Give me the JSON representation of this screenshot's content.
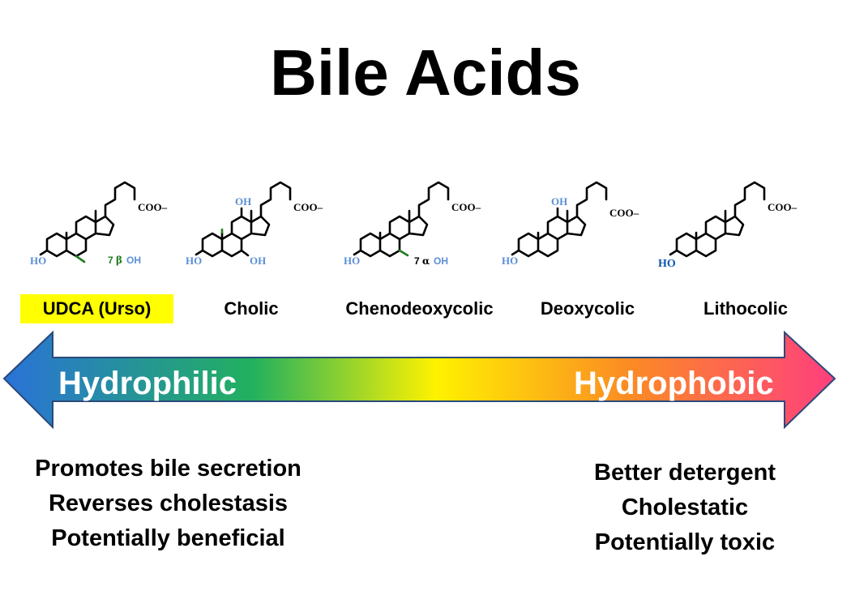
{
  "title": "Bile Acids",
  "molecules": [
    {
      "label": "UDCA (Urso)",
      "highlight_color": "#ffff00",
      "groups": {
        "carboxylate": "COO–",
        "ho3": "HO",
        "oh7_prefix": "7",
        "oh7_greek": "β",
        "oh7": "OH"
      }
    },
    {
      "label": "Cholic",
      "groups": {
        "carboxylate": "COO–",
        "oh12": "OH",
        "ho3": "HO",
        "oh7": "OH"
      }
    },
    {
      "label": "Chenodeoxycolic",
      "groups": {
        "carboxylate": "COO–",
        "ho3": "HO",
        "oh7_prefix": "7",
        "oh7_greek": "α",
        "oh7": "OH"
      }
    },
    {
      "label": "Deoxycolic",
      "groups": {
        "carboxylate": "COO–",
        "oh12": "OH",
        "ho3": "HO"
      }
    },
    {
      "label": "Lithocolic",
      "groups": {
        "carboxylate": "COO–",
        "ho3": "HO"
      }
    }
  ],
  "scale": {
    "left_label": "Hydrophilic",
    "right_label": "Hydrophobic",
    "gradient_colors": [
      "#2a72d8",
      "#22b15e",
      "#fff200",
      "#fb8c23",
      "#ff3f7e"
    ]
  },
  "hydrophilic_effects": [
    "Promotes bile secretion",
    "Reverses cholestasis",
    "Potentially beneficial"
  ],
  "hydrophobic_effects": [
    "Better detergent",
    "Cholestatic",
    "Potentially toxic"
  ],
  "colors": {
    "hydroxyl_blue": "#5b8fd6",
    "stereo_green": "#1e7d1e"
  }
}
